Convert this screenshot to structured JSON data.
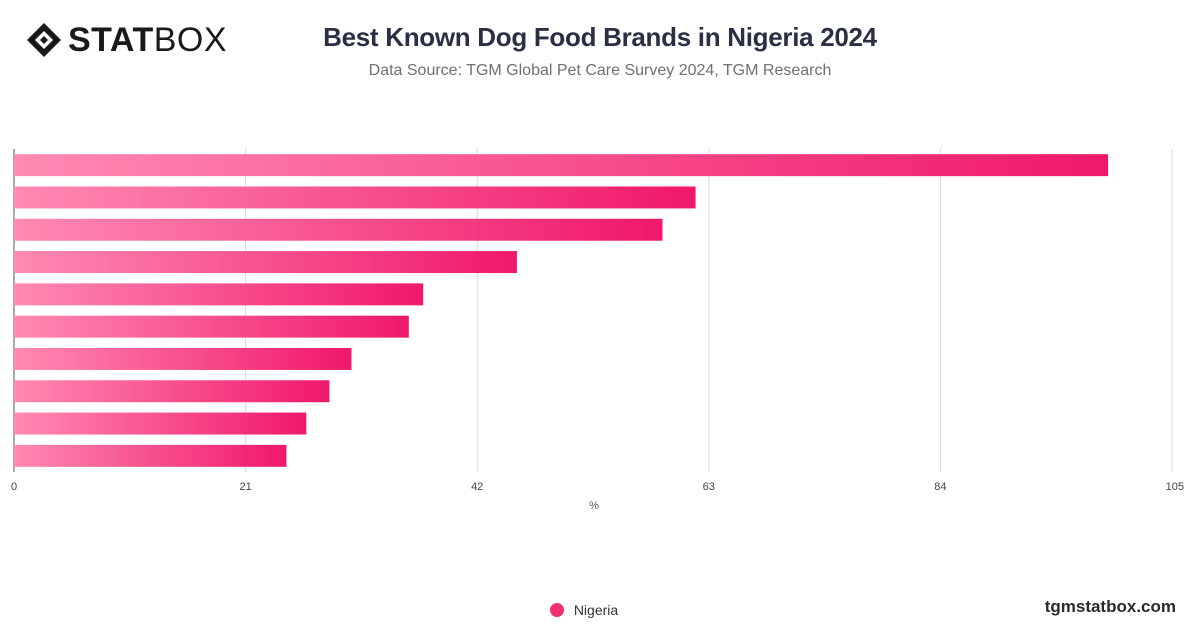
{
  "brand": {
    "logo_bold": "STAT",
    "logo_light": "BOX",
    "logo_icon": "statbox-diamond-icon",
    "site": "tgmstatbox.com"
  },
  "colors": {
    "bar_start": "#ff8ab4",
    "bar_end": "#f0186a",
    "legend": "#f0306f",
    "grid": "#d9d9d9"
  },
  "chart_data": {
    "type": "bar",
    "orientation": "horizontal",
    "title": "Best Known Dog Food Brands in Nigeria 2024",
    "subtitle": "Data Source: TGM Global Pet Care Survey 2024, TGM Research",
    "categories": [
      "",
      "",
      "",
      "",
      "",
      "",
      "",
      "",
      "",
      ""
    ],
    "series": [
      {
        "name": "Nigeria",
        "values": [
          99.2,
          61.8,
          58.8,
          45.6,
          37.1,
          35.8,
          30.6,
          28.6,
          26.5,
          24.7
        ]
      }
    ],
    "xlabel": "%",
    "xlim": [
      0,
      105
    ],
    "xticks": [
      "0",
      "21",
      "42",
      "63",
      "84",
      "105"
    ],
    "grid": true,
    "legend_position": "bottom"
  }
}
